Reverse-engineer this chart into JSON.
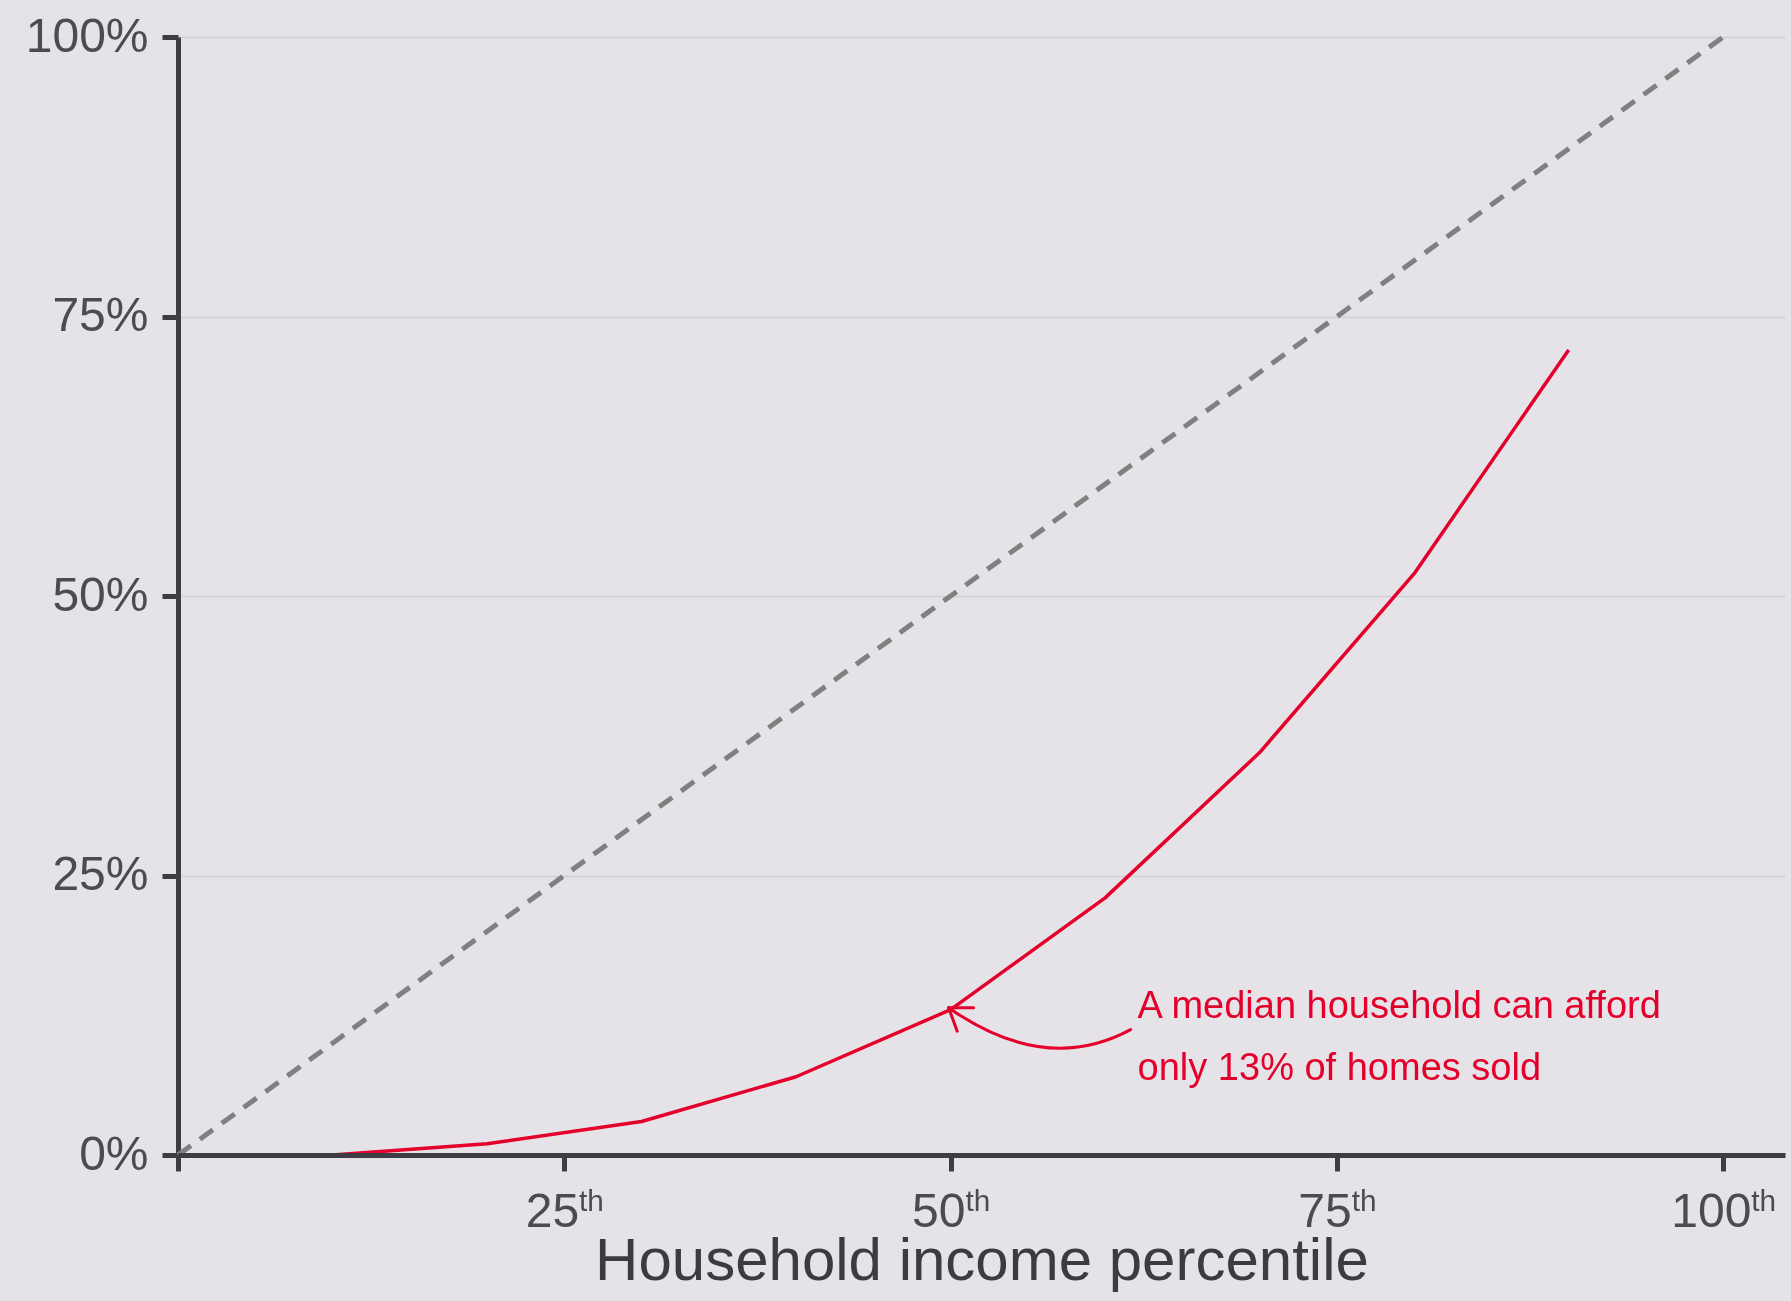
{
  "chart_data": {
    "type": "line",
    "xlabel": "Household income percentile",
    "xlim": [
      0,
      104
    ],
    "xticks": [
      {
        "value": 0,
        "label": null
      },
      {
        "value": 25,
        "label": "25$^{th}$"
      },
      {
        "value": 50,
        "label": "50$^{th}$"
      },
      {
        "value": 75,
        "label": "75$^{th}$"
      },
      {
        "value": 100,
        "label": "100$^{th}$"
      }
    ],
    "ylim": [
      0,
      100
    ],
    "yticks": [
      {
        "value": 0,
        "label": "0%"
      },
      {
        "value": 25,
        "label": "25%"
      },
      {
        "value": 50,
        "label": "50%"
      },
      {
        "value": 75,
        "label": "75%"
      },
      {
        "value": 100,
        "label": "100%"
      }
    ],
    "grid": "y",
    "series": [
      {
        "type": "line",
        "color": "#808080",
        "line_style": "dashed",
        "x": [
          0,
          100
        ],
        "values": [
          0,
          100
        ]
      },
      {
        "type": "line",
        "color": "#e4002b",
        "x": [
          10,
          20,
          30,
          40,
          50,
          60,
          70,
          80,
          90
        ],
        "values": [
          0,
          1,
          3,
          7,
          13,
          23,
          36,
          52,
          72
        ]
      }
    ],
    "annotations": [
      {
        "text": "A median household can afford only 13% of homes sold",
        "x": 50,
        "y": 13
      }
    ]
  }
}
